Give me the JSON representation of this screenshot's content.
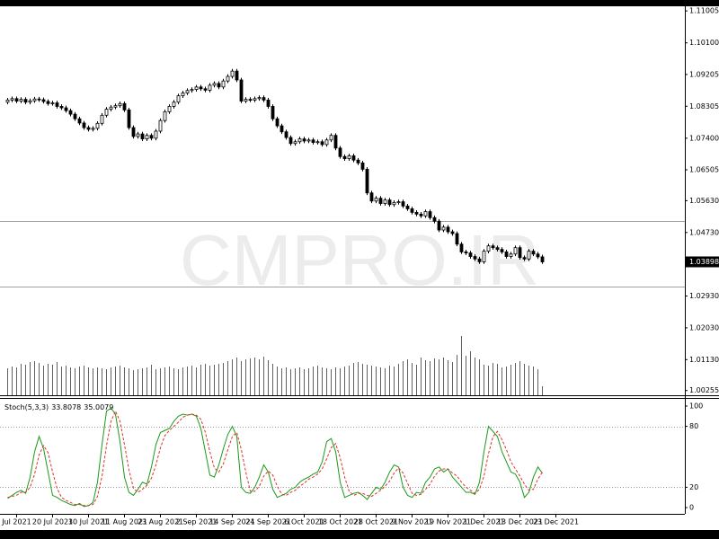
{
  "watermark": "CMPRO.IR",
  "chart_data": [
    {
      "type": "candlestick",
      "open": [
        1.0842,
        1.0848,
        1.0852,
        1.0845,
        1.085,
        1.0842,
        1.0846,
        1.0851,
        1.0849,
        1.0844,
        1.0838,
        1.084,
        1.083,
        1.0826,
        1.0818,
        1.0808,
        1.0795,
        1.0783,
        1.077,
        1.0765,
        1.0768,
        1.0782,
        1.0805,
        1.0822,
        1.0828,
        1.0832,
        1.0838,
        1.082,
        1.077,
        1.0745,
        1.0752,
        1.0738,
        1.0748,
        1.074,
        1.076,
        1.079,
        1.0815,
        1.083,
        1.0842,
        1.086,
        1.0868,
        1.0875,
        1.0878,
        1.0885,
        1.088,
        1.0876,
        1.089,
        1.0895,
        1.0885,
        1.0902,
        1.0915,
        1.093,
        1.0905,
        1.0845,
        1.085,
        1.0848,
        1.0852,
        1.0855,
        1.0848,
        1.083,
        1.0795,
        1.0775,
        1.0758,
        1.0742,
        1.0725,
        1.073,
        1.0738,
        1.0732,
        1.0735,
        1.0728,
        1.073,
        1.0722,
        1.0735,
        1.0748,
        1.0712,
        1.0688,
        1.0682,
        1.069,
        1.0678,
        1.067,
        1.0652,
        1.0585,
        1.0562,
        1.057,
        1.0555,
        1.0565,
        1.0552,
        1.0558,
        1.056,
        1.0548,
        1.054,
        1.053,
        1.0525,
        1.052,
        1.0532,
        1.0515,
        1.0505,
        1.048,
        1.0488,
        1.0475,
        1.047,
        1.044,
        1.0418,
        1.0415,
        1.0405,
        1.0398,
        1.039,
        1.042,
        1.0435,
        1.043,
        1.0425,
        1.0418,
        1.0405,
        1.0412,
        1.043,
        1.0402,
        1.0398,
        1.042,
        1.0412,
        1.0404
      ],
      "high": [
        1.0854,
        1.0858,
        1.0858,
        1.0856,
        1.0856,
        1.0852,
        1.0857,
        1.0857,
        1.0855,
        1.085,
        1.0846,
        1.0846,
        1.0836,
        1.0832,
        1.0824,
        1.0814,
        1.0801,
        1.0789,
        1.0776,
        1.0774,
        1.0788,
        1.0811,
        1.0828,
        1.0834,
        1.0838,
        1.0844,
        1.0844,
        1.0826,
        1.0776,
        1.0758,
        1.0758,
        1.0754,
        1.0754,
        1.0766,
        1.0796,
        1.0821,
        1.0836,
        1.0848,
        1.0866,
        1.0874,
        1.0881,
        1.0884,
        1.0891,
        1.0891,
        1.0886,
        1.0896,
        1.0901,
        1.0901,
        1.0908,
        1.0921,
        1.0936,
        1.0936,
        1.0911,
        1.0856,
        1.0856,
        1.0858,
        1.0861,
        1.0861,
        1.0854,
        1.0836,
        1.0801,
        1.0781,
        1.0764,
        1.0748,
        1.0736,
        1.0744,
        1.0744,
        1.0741,
        1.0741,
        1.0736,
        1.0736,
        1.0741,
        1.0754,
        1.0754,
        1.0718,
        1.0694,
        1.0696,
        1.0696,
        1.0684,
        1.0676,
        1.0658,
        1.0591,
        1.0576,
        1.0576,
        1.0571,
        1.0571,
        1.0564,
        1.0566,
        1.0566,
        1.0554,
        1.0546,
        1.0536,
        1.0531,
        1.0538,
        1.0538,
        1.0521,
        1.0511,
        1.0494,
        1.0494,
        1.0481,
        1.0476,
        1.0446,
        1.0424,
        1.0421,
        1.0411,
        1.0404,
        1.0426,
        1.0441,
        1.0441,
        1.0436,
        1.0431,
        1.0424,
        1.0418,
        1.0436,
        1.0436,
        1.0408,
        1.0426,
        1.0426,
        1.0418,
        1.041
      ],
      "low": [
        1.0836,
        1.0842,
        1.0839,
        1.0839,
        1.0836,
        1.0836,
        1.084,
        1.0843,
        1.0838,
        1.0832,
        1.0832,
        1.0824,
        1.082,
        1.0812,
        1.0802,
        1.0789,
        1.0777,
        1.0764,
        1.0759,
        1.0759,
        1.0762,
        1.0776,
        1.0799,
        1.0816,
        1.0822,
        1.0826,
        1.0814,
        1.0764,
        1.0739,
        1.0739,
        1.0732,
        1.0732,
        1.0734,
        1.0734,
        1.0754,
        1.0784,
        1.0809,
        1.0824,
        1.0836,
        1.0854,
        1.0862,
        1.0869,
        1.0872,
        1.0874,
        1.087,
        1.087,
        1.0884,
        1.0879,
        1.0879,
        1.0896,
        1.0909,
        1.0899,
        1.0839,
        1.0839,
        1.0842,
        1.0842,
        1.0846,
        1.0842,
        1.0824,
        1.0789,
        1.0769,
        1.0752,
        1.0736,
        1.0719,
        1.0719,
        1.0724,
        1.0726,
        1.0726,
        1.0722,
        1.0722,
        1.0716,
        1.0716,
        1.0729,
        1.0706,
        1.0682,
        1.0676,
        1.0676,
        1.0672,
        1.0664,
        1.0646,
        1.0579,
        1.0556,
        1.0556,
        1.0549,
        1.0549,
        1.0546,
        1.0546,
        1.0552,
        1.0542,
        1.0534,
        1.0524,
        1.0519,
        1.0514,
        1.0514,
        1.0509,
        1.0499,
        1.0474,
        1.0474,
        1.0469,
        1.0464,
        1.0434,
        1.0412,
        1.0409,
        1.0399,
        1.0392,
        1.0384,
        1.0384,
        1.0414,
        1.0424,
        1.0419,
        1.0412,
        1.0399,
        1.0399,
        1.0406,
        1.0396,
        1.0392,
        1.0392,
        1.0406,
        1.0398,
        1.0384
      ],
      "close": [
        1.0848,
        1.0852,
        1.0845,
        1.085,
        1.0842,
        1.0846,
        1.0851,
        1.0849,
        1.0844,
        1.0838,
        1.084,
        1.083,
        1.0826,
        1.0818,
        1.0808,
        1.0795,
        1.0783,
        1.077,
        1.0765,
        1.0768,
        1.0782,
        1.0805,
        1.0822,
        1.0828,
        1.0832,
        1.0838,
        1.082,
        1.077,
        1.0745,
        1.0752,
        1.0738,
        1.0748,
        1.074,
        1.076,
        1.079,
        1.0815,
        1.083,
        1.0842,
        1.086,
        1.0868,
        1.0875,
        1.0878,
        1.0885,
        1.088,
        1.0876,
        1.089,
        1.0895,
        1.0885,
        1.0902,
        1.0915,
        1.093,
        1.0905,
        1.0845,
        1.085,
        1.0848,
        1.0852,
        1.0855,
        1.0848,
        1.083,
        1.0795,
        1.0775,
        1.0758,
        1.0742,
        1.0725,
        1.073,
        1.0738,
        1.0732,
        1.0735,
        1.0728,
        1.073,
        1.0722,
        1.0735,
        1.0748,
        1.0712,
        1.0688,
        1.0682,
        1.069,
        1.0678,
        1.067,
        1.0652,
        1.0585,
        1.0562,
        1.057,
        1.0555,
        1.0565,
        1.0552,
        1.0558,
        1.056,
        1.0548,
        1.054,
        1.053,
        1.0525,
        1.052,
        1.0532,
        1.0515,
        1.0505,
        1.048,
        1.0488,
        1.0475,
        1.047,
        1.044,
        1.0418,
        1.0415,
        1.0405,
        1.0398,
        1.039,
        1.042,
        1.0435,
        1.043,
        1.0425,
        1.0418,
        1.0405,
        1.0412,
        1.043,
        1.0402,
        1.0398,
        1.042,
        1.0412,
        1.0404,
        1.03898
      ],
      "volume": [
        30,
        32,
        31,
        35,
        34,
        37,
        38,
        36,
        33,
        35,
        34,
        37,
        32,
        33,
        31,
        30,
        32,
        33,
        31,
        30,
        31,
        30,
        29,
        31,
        32,
        33,
        31,
        30,
        28,
        29,
        30,
        31,
        34,
        29,
        30,
        31,
        32,
        30,
        29,
        31,
        32,
        33,
        31,
        34,
        35,
        33,
        34,
        35,
        36,
        38,
        40,
        42,
        38,
        40,
        41,
        42,
        40,
        43,
        39,
        35,
        32,
        30,
        31,
        29,
        30,
        31,
        29,
        30,
        32,
        33,
        31,
        30,
        29,
        31,
        30,
        32,
        33,
        36,
        37,
        35,
        34,
        33,
        32,
        31,
        30,
        33,
        32,
        35,
        38,
        40,
        36,
        34,
        42,
        39,
        38,
        41,
        40,
        42,
        39,
        37,
        45,
        66,
        44,
        49,
        42,
        40,
        34,
        33,
        36,
        35,
        31,
        32,
        34,
        36,
        38,
        35,
        33,
        32,
        29,
        10
      ],
      "ylim": [
        1.0012,
        1.1111
      ],
      "yticks": [
        1.11005,
        {
          "value": 1.101,
          "label": "1.10100"
        },
        1.09205,
        1.08305,
        {
          "value": 1.074,
          "label": "1.07400"
        },
        1.06505,
        {
          "value": 1.0563,
          "label": "1.05630"
        },
        {
          "value": 1.0473,
          "label": "1.04730"
        },
        {
          "value": 1.0293,
          "label": "1.02930"
        },
        {
          "value": 1.0203,
          "label": "1.02030"
        },
        {
          "value": 1.0113,
          "label": "1.01130"
        },
        1.00255
      ],
      "levels": [
        1.0506,
        1.032
      ],
      "up_color": "#ffffff",
      "down_color": "#000000",
      "level_color": "#a0a0a0",
      "volume_color": "#606060"
    },
    {
      "type": "line",
      "name": "Stoch(5,3,3)",
      "series": [
        {
          "color": "#1a9a1a",
          "dash": false,
          "values": [
            9,
            12,
            15,
            17,
            14,
            30,
            55,
            70,
            58,
            35,
            12,
            10,
            7,
            5,
            3,
            2,
            4,
            1,
            2,
            5,
            25,
            62,
            95,
            98,
            92,
            65,
            30,
            15,
            12,
            18,
            25,
            23,
            40,
            62,
            74,
            76,
            78,
            85,
            90,
            92,
            91,
            92,
            90,
            78,
            55,
            32,
            30,
            42,
            58,
            72,
            80,
            70,
            20,
            15,
            14,
            20,
            30,
            42,
            35,
            18,
            10,
            12,
            14,
            18,
            20,
            25,
            28,
            30,
            33,
            35,
            45,
            65,
            68,
            55,
            25,
            10,
            12,
            14,
            15,
            12,
            8,
            14,
            20,
            18,
            25,
            35,
            42,
            40,
            20,
            12,
            10,
            15,
            14,
            25,
            30,
            38,
            40,
            35,
            38,
            30,
            25,
            20,
            15,
            15,
            13,
            25,
            55,
            80,
            75,
            70,
            55,
            45,
            35,
            33,
            25,
            10,
            15,
            30,
            40,
            33.8078
          ]
        },
        {
          "color": "#e0302a",
          "dash": true,
          "values": [
            10,
            11,
            12,
            15,
            15,
            20,
            33,
            52,
            61,
            54,
            35,
            19,
            10,
            7,
            5,
            3,
            3,
            2,
            2,
            3,
            11,
            31,
            61,
            85,
            95,
            85,
            62,
            37,
            19,
            15,
            18,
            22,
            29,
            42,
            59,
            71,
            76,
            80,
            84,
            89,
            91,
            92,
            91,
            87,
            74,
            55,
            39,
            35,
            43,
            57,
            70,
            74,
            57,
            35,
            16,
            16,
            21,
            31,
            36,
            32,
            21,
            13,
            12,
            15,
            17,
            21,
            24,
            28,
            30,
            33,
            38,
            48,
            59,
            63,
            49,
            30,
            16,
            12,
            14,
            14,
            12,
            11,
            14,
            17,
            21,
            26,
            34,
            39,
            34,
            24,
            14,
            12,
            13,
            18,
            23,
            31,
            36,
            38,
            38,
            34,
            31,
            25,
            20,
            17,
            14,
            18,
            31,
            53,
            70,
            75,
            67,
            57,
            45,
            38,
            31,
            23,
            17,
            18,
            28,
            35.0079
          ]
        }
      ],
      "ylim": [
        0,
        100
      ],
      "yticks": [
        0,
        20,
        80,
        100
      ],
      "levels": [
        20,
        80
      ],
      "x_labels": [
        "Jul 2021",
        "20 Jul 2021",
        "30 Jul 2021",
        "11 Aug 2021",
        "23 Aug 2021",
        "2 Sep 2021",
        "14 Sep 2021",
        "24 Sep 2021",
        "6 Oct 2021",
        "18 Oct 2021",
        "28 Oct 2021",
        "9 Nov 2021",
        "19 Nov 2021",
        "1 Dec 2021",
        "13 Dec 2021",
        "23 Dec 2021"
      ]
    }
  ]
}
